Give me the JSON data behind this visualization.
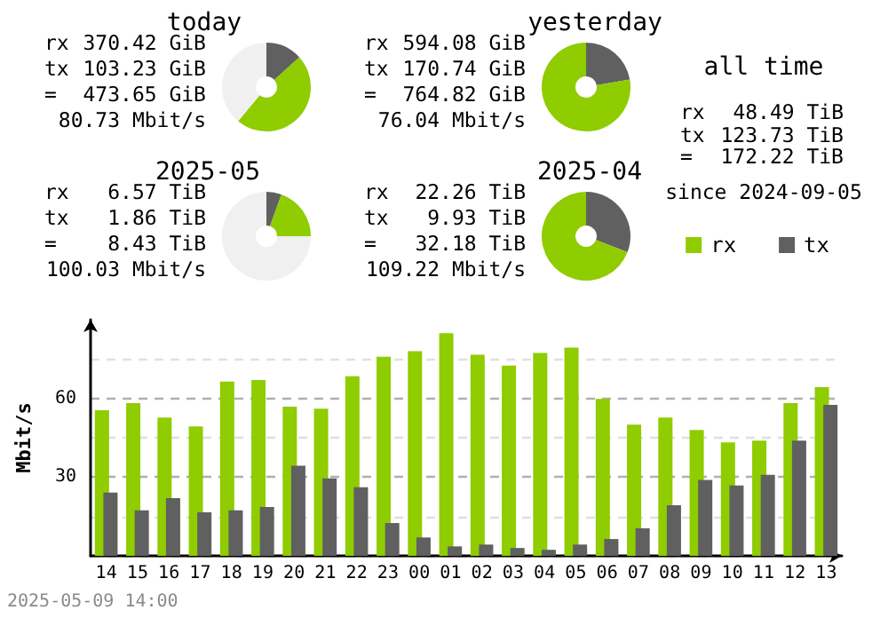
{
  "chart_data": [
    {
      "type": "donut",
      "title": "today",
      "categories": [
        null,
        null,
        null
      ],
      "values": [
        13.3,
        47.7,
        39
      ],
      "colors": [
        "#606060",
        "#8fcc00",
        "#f0f0f0"
      ],
      "annotations": [
        "rx",
        "370.42 GiB",
        "tx",
        "103.23 GiB",
        "=",
        "473.65 GiB",
        "80.73 Mbit/s"
      ]
    },
    {
      "type": "donut",
      "title": "yesterday",
      "categories": [
        null,
        null
      ],
      "values": [
        22.3,
        77.7
      ],
      "colors": [
        "#606060",
        "#8fcc00"
      ],
      "annotations": [
        "rx",
        "594.08 GiB",
        "tx",
        "170.74 GiB",
        "=",
        "764.82 GiB",
        "76.04 Mbit/s"
      ]
    },
    {
      "type": "other",
      "title": "all time",
      "annotations": [
        "rx",
        "48.49 TiB",
        "tx",
        "123.73 TiB",
        "=",
        "172.22 TiB",
        "since 2024-09-05"
      ]
    },
    {
      "type": "donut",
      "title": "2025-05",
      "categories": [
        null,
        null,
        null
      ],
      "values": [
        5.5,
        19.5,
        75
      ],
      "colors": [
        "#606060",
        "#8fcc00",
        "#f0f0f0"
      ],
      "annotations": [
        "rx",
        "6.57 TiB",
        "tx",
        "1.86 TiB",
        "=",
        "8.43 TiB",
        "100.03 Mbit/s"
      ]
    },
    {
      "type": "donut",
      "title": "2025-04",
      "categories": [
        null,
        null
      ],
      "values": [
        30.9,
        69.1
      ],
      "colors": [
        "#606060",
        "#8fcc00"
      ],
      "annotations": [
        "rx",
        "22.26 TiB",
        "tx",
        "9.93 TiB",
        "=",
        "32.18 TiB",
        "109.22 Mbit/s"
      ]
    },
    {
      "type": "bar",
      "ylabel": "Mbit/s",
      "categories": [
        "14",
        "15",
        "16",
        "17",
        "18",
        "19",
        "20",
        "21",
        "22",
        "23",
        "00",
        "01",
        "02",
        "03",
        "04",
        "05",
        "06",
        "07",
        "08",
        "09",
        "10",
        "11",
        "12",
        "13"
      ],
      "series": [
        {
          "name": "rx",
          "color": "#8fcc00",
          "values": [
            55.5,
            58.2,
            52.7,
            49.3,
            66.4,
            67.0,
            56.8,
            56.1,
            68.4,
            75.9,
            78.0,
            84.8,
            76.6,
            72.5,
            77.3,
            79.3,
            59.8,
            50.0,
            52.7,
            48.0,
            43.2,
            43.9,
            58.2,
            64.3
          ]
        },
        {
          "name": "tx",
          "color": "#606060",
          "values": [
            24.1,
            17.3,
            22.0,
            16.6,
            17.3,
            18.6,
            34.3,
            29.5,
            26.1,
            12.5,
            7.0,
            3.6,
            4.3,
            3.0,
            2.3,
            4.3,
            6.4,
            10.5,
            19.3,
            28.9,
            26.8,
            30.9,
            43.9,
            57.5
          ]
        }
      ],
      "ylim": [
        0,
        90
      ],
      "yticks": [
        {
          "value": 0,
          "label": null
        },
        {
          "value": 15,
          "label": null
        },
        30,
        {
          "value": 45,
          "label": null
        },
        60,
        {
          "value": 75,
          "label": null
        }
      ],
      "grid": "y",
      "legend": "top right",
      "annotations": [
        "2025-05-09 14:00"
      ]
    }
  ]
}
